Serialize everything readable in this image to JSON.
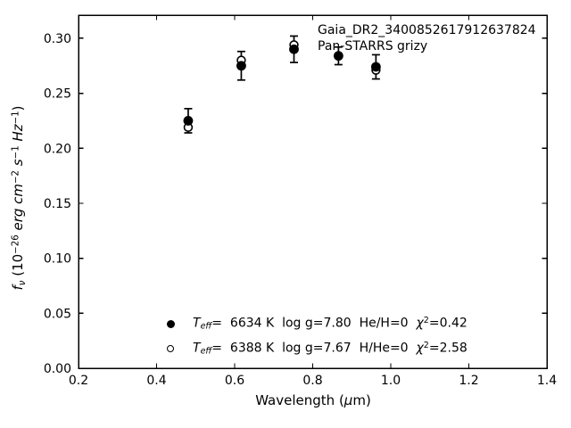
{
  "chart_data": {
    "type": "scatter",
    "title": "",
    "annotation": [
      "Gaia_DR2_3400852617912637824",
      "Pan-STARRS grizy"
    ],
    "xlabel": "Wavelength (um)",
    "ylabel": "f_nu (10^-26 erg cm^-2 s^-1 Hz^-1)",
    "xlabel_segments": [
      {
        "t": "Wavelength (",
        "s": "n"
      },
      {
        "t": "μ",
        "s": "i"
      },
      {
        "t": "m)",
        "s": "n"
      }
    ],
    "ylabel_segments": [
      {
        "t": "f",
        "s": "i"
      },
      {
        "t": "ν",
        "s": "isub"
      },
      {
        "t": " (10",
        "s": "n"
      },
      {
        "t": "−26",
        "s": "sup"
      },
      {
        "t": " ",
        "s": "n"
      },
      {
        "t": "erg cm",
        "s": "i"
      },
      {
        "t": "−2",
        "s": "sup"
      },
      {
        "t": " ",
        "s": "n"
      },
      {
        "t": "s",
        "s": "i"
      },
      {
        "t": "−1",
        "s": "sup"
      },
      {
        "t": " ",
        "s": "n"
      },
      {
        "t": "Hz",
        "s": "i"
      },
      {
        "t": "−1",
        "s": "sup"
      },
      {
        "t": ")",
        "s": "n"
      }
    ],
    "xlim": [
      0.2,
      1.4
    ],
    "ylim": [
      0,
      0.321
    ],
    "xticks": [
      0.2,
      0.4,
      0.6,
      0.8,
      1.0,
      1.2,
      1.4
    ],
    "xtick_labels": [
      "0.2",
      "0.4",
      "0.6",
      "0.8",
      "1.0",
      "1.2",
      "1.4"
    ],
    "yticks": [
      0.0,
      0.05,
      0.1,
      0.15,
      0.2,
      0.25,
      0.3
    ],
    "ytick_labels": [
      "0.00",
      "0.05",
      "0.10",
      "0.15",
      "0.20",
      "0.25",
      "0.30"
    ],
    "grid": false,
    "tick_direction": "in",
    "legend_position": "lower-center-frameless",
    "axis_color": "#000000",
    "background_color": "#ffffff",
    "marker_color": "#000000",
    "x_band_names": [
      "g",
      "r",
      "i",
      "z",
      "y"
    ],
    "series": [
      {
        "name": "He/H=0 model (filled circles, with error bars)",
        "marker": "filled-circle",
        "color": "#000000",
        "x": [
          0.481,
          0.617,
          0.752,
          0.866,
          0.962
        ],
        "y": [
          0.225,
          0.275,
          0.29,
          0.284,
          0.274
        ],
        "yerr": [
          0.011,
          0.013,
          0.012,
          0.008,
          0.011
        ],
        "legend_segments": [
          {
            "t": "T",
            "s": "i"
          },
          {
            "t": "eff",
            "s": "isub"
          },
          {
            "t": "=  6634 K  log g=7.80  He/H=0  ",
            "s": "n"
          },
          {
            "t": "χ",
            "s": "i"
          },
          {
            "t": "2",
            "s": "sup"
          },
          {
            "t": "=0.42",
            "s": "n"
          }
        ]
      },
      {
        "name": "H/He=0 model (open circles)",
        "marker": "open-circle",
        "color": "#000000",
        "x": [
          0.481,
          0.617,
          0.752,
          0.866,
          0.962
        ],
        "y": [
          0.219,
          0.28,
          0.294,
          0.284,
          0.271
        ],
        "yerr": null,
        "legend_segments": [
          {
            "t": "T",
            "s": "i"
          },
          {
            "t": "eff",
            "s": "isub"
          },
          {
            "t": "=  6388 K  log g=7.67  H/He=0  ",
            "s": "n"
          },
          {
            "t": "χ",
            "s": "i"
          },
          {
            "t": "2",
            "s": "sup"
          },
          {
            "t": "=2.58",
            "s": "n"
          }
        ]
      }
    ]
  }
}
